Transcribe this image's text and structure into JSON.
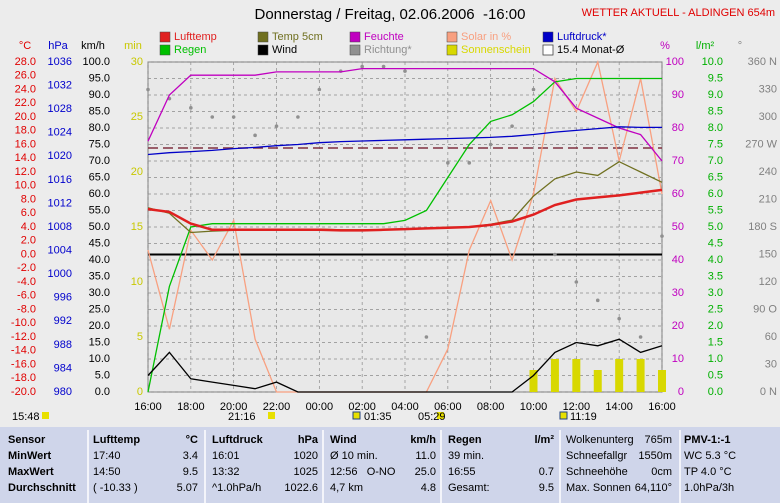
{
  "chart_data": {
    "type": "line",
    "title": "Donnerstag / Freitag, 02.06.2006  -16:00",
    "subtitle": "WETTER AKTUELL - ALDINGEN 654m",
    "x": [
      0,
      1,
      2,
      3,
      4,
      5,
      6,
      7,
      8,
      9,
      10,
      11,
      12,
      13,
      14,
      15,
      16,
      17,
      18,
      19,
      20,
      21,
      22,
      23,
      24
    ],
    "xlim": [
      0,
      24
    ],
    "xticks": [
      {
        "value": 0,
        "label": "16:00"
      },
      {
        "value": 2,
        "label": "18:00"
      },
      {
        "value": 4,
        "label": "20:00"
      },
      {
        "value": 6,
        "label": "22:00"
      },
      {
        "value": 8,
        "label": "00:00"
      },
      {
        "value": 10,
        "label": "02:00"
      },
      {
        "value": 12,
        "label": "04:00"
      },
      {
        "value": 14,
        "label": "06:00"
      },
      {
        "value": 16,
        "label": "08:00"
      },
      {
        "value": 18,
        "label": "10:00"
      },
      {
        "value": 20,
        "label": "12:00"
      },
      {
        "value": 22,
        "label": "14:00"
      },
      {
        "value": 24,
        "label": "16:00"
      }
    ],
    "grid": true,
    "axes": {
      "y": {
        "label": "°C",
        "color": "#e00000",
        "lim": [
          -20,
          28
        ],
        "ticks": [
          {
            "value": 28,
            "label": "28.0"
          },
          {
            "value": 26,
            "label": "26.0"
          },
          {
            "value": 24,
            "label": "24.0"
          },
          {
            "value": 22,
            "label": "22.0"
          },
          {
            "value": 20,
            "label": "20.0"
          },
          {
            "value": 18,
            "label": "18.0"
          },
          {
            "value": 16,
            "label": "16.0"
          },
          {
            "value": 14,
            "label": "14.0"
          },
          {
            "value": 12,
            "label": "12.0"
          },
          {
            "value": 10,
            "label": "10.0"
          },
          {
            "value": 8,
            "label": "8.0"
          },
          {
            "value": 6,
            "label": "6.0"
          },
          {
            "value": 4,
            "label": "4.0"
          },
          {
            "value": 2,
            "label": "2.0"
          },
          {
            "value": 0,
            "label": "0.0"
          },
          {
            "value": -2,
            "label": "-2.0"
          },
          {
            "value": -4,
            "label": "-4.0"
          },
          {
            "value": -6,
            "label": "-6.0"
          },
          {
            "value": -8,
            "label": "-8.0"
          },
          {
            "value": -10,
            "label": "-10.0"
          },
          {
            "value": -12,
            "label": "-12.0"
          },
          {
            "value": -14,
            "label": "-14.0"
          },
          {
            "value": -16,
            "label": "-16.0"
          },
          {
            "value": -18,
            "label": "-18.0"
          },
          {
            "value": -20,
            "label": "-20.0"
          }
        ]
      },
      "y2": {
        "label": "hPa",
        "color": "#0000cc",
        "lim": [
          980,
          1036
        ],
        "ticks": [
          1036,
          1032,
          1028,
          1024,
          1020,
          1016,
          1012,
          1008,
          1004,
          1000,
          996,
          992,
          988,
          984,
          980
        ]
      },
      "y3": {
        "label": "km/h",
        "color": "#000000",
        "lim": [
          0,
          100
        ],
        "ticks": [
          {
            "value": 100,
            "label": "100.0"
          },
          {
            "value": 95,
            "label": "95.0"
          },
          {
            "value": 90,
            "label": "90.0"
          },
          {
            "value": 85,
            "label": "85.0"
          },
          {
            "value": 80,
            "label": "80.0"
          },
          {
            "value": 75,
            "label": "75.0"
          },
          {
            "value": 70,
            "label": "70.0"
          },
          {
            "value": 65,
            "label": "65.0"
          },
          {
            "value": 60,
            "label": "60.0"
          },
          {
            "value": 55,
            "label": "55.0"
          },
          {
            "value": 50,
            "label": "50.0"
          },
          {
            "value": 45,
            "label": "45.0"
          },
          {
            "value": 40,
            "label": "40.0"
          },
          {
            "value": 35,
            "label": "35.0"
          },
          {
            "value": 30,
            "label": "30.0"
          },
          {
            "value": 25,
            "label": "25.0"
          },
          {
            "value": 20,
            "label": "20.0"
          },
          {
            "value": 15,
            "label": "15.0"
          },
          {
            "value": 10,
            "label": "10.0"
          },
          {
            "value": 5,
            "label": "5.0"
          },
          {
            "value": 0,
            "label": "0.0"
          }
        ]
      },
      "y4": {
        "label": "min",
        "color": "#c8c800",
        "lim": [
          0,
          30
        ],
        "ticks": [
          30,
          25,
          20,
          15,
          10,
          5,
          0
        ]
      },
      "y5": {
        "label": "%",
        "color": "#c000c0",
        "lim": [
          0,
          100
        ],
        "ticks": [
          100,
          90,
          80,
          70,
          60,
          50,
          40,
          30,
          20,
          10,
          0
        ]
      },
      "y6": {
        "label": "l/m²",
        "color": "#00b000",
        "lim": [
          0,
          10
        ],
        "ticks": [
          {
            "value": 10,
            "label": "10.0"
          },
          {
            "value": 9.5,
            "label": "9.5"
          },
          {
            "value": 9,
            "label": "9.0"
          },
          {
            "value": 8.5,
            "label": "8.5"
          },
          {
            "value": 8,
            "label": "8.0"
          },
          {
            "value": 7.5,
            "label": "7.5"
          },
          {
            "value": 7,
            "label": "7.0"
          },
          {
            "value": 6.5,
            "label": "6.5"
          },
          {
            "value": 6,
            "label": "6.0"
          },
          {
            "value": 5.5,
            "label": "5.5"
          },
          {
            "value": 5,
            "label": "5.0"
          },
          {
            "value": 4.5,
            "label": "4.5"
          },
          {
            "value": 4,
            "label": "4.0"
          },
          {
            "value": 3.5,
            "label": "3.5"
          },
          {
            "value": 3,
            "label": "3.0"
          },
          {
            "value": 2.5,
            "label": "2.5"
          },
          {
            "value": 2,
            "label": "2.0"
          },
          {
            "value": 1.5,
            "label": "1.5"
          },
          {
            "value": 1,
            "label": "1.0"
          },
          {
            "value": 0.5,
            "label": "0.5"
          },
          {
            "value": 0,
            "label": "0.0"
          }
        ]
      },
      "y7": {
        "label": "°",
        "color": "#808080",
        "lim": [
          0,
          360
        ],
        "ticks": [
          {
            "value": 360,
            "label": "360 N"
          },
          330,
          300,
          {
            "value": 270,
            "label": "270 W"
          },
          240,
          210,
          {
            "value": 180,
            "label": "180 S"
          },
          150,
          120,
          {
            "value": 90,
            "label": "90 O"
          },
          60,
          30,
          {
            "value": 0,
            "label": "0 N"
          }
        ]
      }
    },
    "series": [
      {
        "name": "Lufttemp",
        "color": "#e02020",
        "axis": "y",
        "style": "line",
        "values": [
          6.6,
          6.2,
          4.5,
          3.6,
          3.6,
          3.6,
          3.6,
          3.6,
          3.6,
          3.5,
          3.5,
          3.6,
          3.7,
          3.8,
          3.9,
          4.0,
          4.3,
          4.8,
          5.8,
          7.2,
          8.0,
          8.3,
          8.6,
          9.0,
          9.4
        ]
      },
      {
        "name": "Regen",
        "color": "#00c000",
        "axis": "y6",
        "style": "line",
        "values": [
          0,
          3.2,
          5.0,
          5.1,
          5.1,
          5.1,
          5.1,
          5.1,
          5.1,
          5.1,
          5.1,
          5.1,
          5.2,
          5.5,
          6.5,
          7.5,
          8.2,
          8.4,
          8.8,
          9.4,
          9.5,
          9.5,
          9.5,
          9.5,
          9.5
        ]
      },
      {
        "name": "Temp 5cm",
        "color": "#707020",
        "axis": "y",
        "style": "line",
        "values": [
          6.8,
          6.0,
          3.2,
          3.4,
          3.5,
          3.6,
          3.6,
          3.6,
          3.7,
          3.6,
          3.6,
          3.6,
          3.7,
          3.8,
          4.0,
          4.0,
          4.4,
          5.0,
          8.5,
          11.0,
          12.0,
          11.5,
          13.5,
          12.0,
          10.5
        ]
      },
      {
        "name": "Wind",
        "color": "#000000",
        "axis": "y3",
        "style": "line",
        "values": [
          5,
          12,
          4,
          3,
          2,
          1,
          3,
          0,
          0,
          0,
          0,
          0,
          0,
          0,
          0,
          0,
          0,
          0,
          5,
          12,
          15,
          14,
          16,
          12,
          14
        ]
      },
      {
        "name": "Feuchte",
        "color": "#c000c0",
        "axis": "y5",
        "style": "line",
        "values": [
          76,
          90,
          96,
          96,
          96,
          96,
          97,
          97,
          97,
          97,
          98,
          98,
          98,
          98,
          98,
          98,
          98,
          98,
          98,
          94,
          86,
          83,
          80,
          78,
          70
        ]
      },
      {
        "name": "Richtung*",
        "color": "#909090",
        "axis": "y7",
        "style": "dots",
        "values": [
          330,
          320,
          310,
          300,
          300,
          280,
          290,
          300,
          330,
          350,
          355,
          355,
          350,
          60,
          250,
          250,
          270,
          290,
          330,
          150,
          120,
          100,
          80,
          60,
          170
        ]
      },
      {
        "name": "Solar in %",
        "color": "#f8a080",
        "axis": "y5",
        "style": "line",
        "values": [
          43,
          19,
          49,
          40,
          52,
          16,
          0,
          0,
          0,
          0,
          0,
          0,
          0,
          0,
          13,
          43,
          58,
          40,
          60,
          95,
          85,
          100,
          70,
          95,
          60
        ]
      },
      {
        "name": "Sonnenschein",
        "color": "#d8d800",
        "axis": "y4",
        "style": "bars",
        "values": [
          0,
          0,
          0,
          0,
          0,
          0,
          0,
          0,
          0,
          0,
          0,
          0,
          0,
          0,
          0,
          0,
          0,
          0,
          2,
          3,
          3,
          2,
          3,
          3,
          2
        ]
      },
      {
        "name": "Luftdruck*",
        "color": "#0000c8",
        "axis": "y2",
        "style": "line",
        "values": [
          1020.3,
          1020.6,
          1020.8,
          1021,
          1021.3,
          1021.5,
          1021.8,
          1022,
          1022.3,
          1022.5,
          1022.6,
          1022.7,
          1022.8,
          1022.9,
          1023,
          1023.1,
          1023.2,
          1023.4,
          1023.7,
          1024.1,
          1024.4,
          1024.7,
          1025,
          1024.9,
          1024.9
        ]
      }
    ],
    "average": {
      "name": "15.4 Monat-Ø",
      "color": "#803040",
      "axis": "y2",
      "value": 1021.4
    },
    "sun_times": [
      "15:48",
      "21:16",
      "01:35",
      "05:29",
      "11:19"
    ]
  },
  "table": {
    "rows": [
      [
        [
          "Sensor"
        ],
        [
          "Lufttemp",
          "°C"
        ],
        [
          "Luftdruck",
          "hPa"
        ],
        [
          "Wind",
          "km/h"
        ],
        [
          "Regen",
          "l/m²"
        ],
        [
          "Wolkenunterg",
          "765m"
        ],
        [
          "PMV-1:-1"
        ]
      ],
      [
        [
          "MinWert"
        ],
        [
          "17:40",
          "3.4"
        ],
        [
          "16:01",
          "1020"
        ],
        [
          "Ø 10 min.",
          "11.0"
        ],
        [
          "39 min.",
          ""
        ],
        [
          "Schneefallgr",
          "1550m"
        ],
        [
          "WC 5.3 °C"
        ]
      ],
      [
        [
          "MaxWert"
        ],
        [
          "14:50",
          "9.5"
        ],
        [
          "13:32",
          "1025"
        ],
        [
          "12:56   O-NO",
          "25.0"
        ],
        [
          "16:55",
          "0.7"
        ],
        [
          "Schneehöhe",
          "0cm"
        ],
        [
          "TP 4.0 °C"
        ]
      ],
      [
        [
          "Durchschnitt"
        ],
        [
          "( -10.33 )",
          "5.07"
        ],
        [
          "^1.0hPa/h",
          "1022.6"
        ],
        [
          "4,7 km",
          "4.8"
        ],
        [
          "Gesamt:",
          "9.5"
        ],
        [
          "Max. Sonnen",
          "64,110°"
        ],
        [
          "1.0hPa/3h"
        ]
      ]
    ]
  }
}
